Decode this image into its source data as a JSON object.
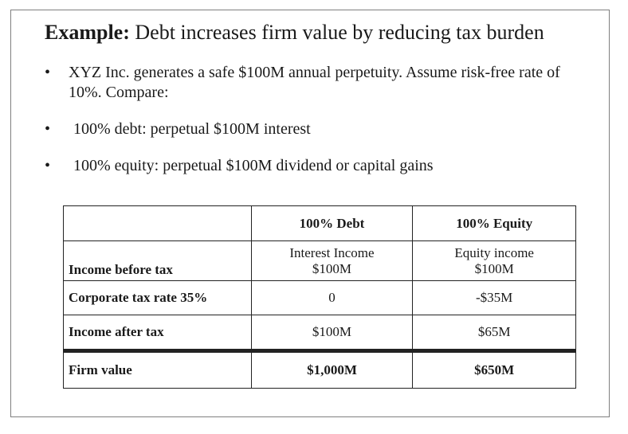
{
  "title": {
    "lead": "Example:",
    "rest": " Debt increases firm value by reducing tax burden"
  },
  "bullets": [
    {
      "marker": "•",
      "text": "XYZ Inc. generates a safe $100M annual perpetuity. Assume risk-free rate of 10%. Compare:"
    },
    {
      "marker": "•",
      "text": "100% debt: perpetual $100M interest"
    },
    {
      "marker": "•",
      "text": "100% equity: perpetual $100M dividend or capital gains"
    }
  ],
  "table": {
    "headers": [
      "",
      "100% Debt",
      "100% Equity"
    ],
    "rows": [
      {
        "label": "Income before tax",
        "debt_line1": "Interest Income",
        "debt_line2": "$100M",
        "equity_line1": "Equity income",
        "equity_line2": "$100M"
      },
      {
        "label": "Corporate tax rate 35%",
        "debt": "0",
        "equity": "-$35M"
      },
      {
        "label": "Income after tax",
        "debt": "$100M",
        "equity": "$65M"
      },
      {
        "label": "Firm value",
        "debt": "$1,000M",
        "equity": "$650M"
      }
    ]
  }
}
